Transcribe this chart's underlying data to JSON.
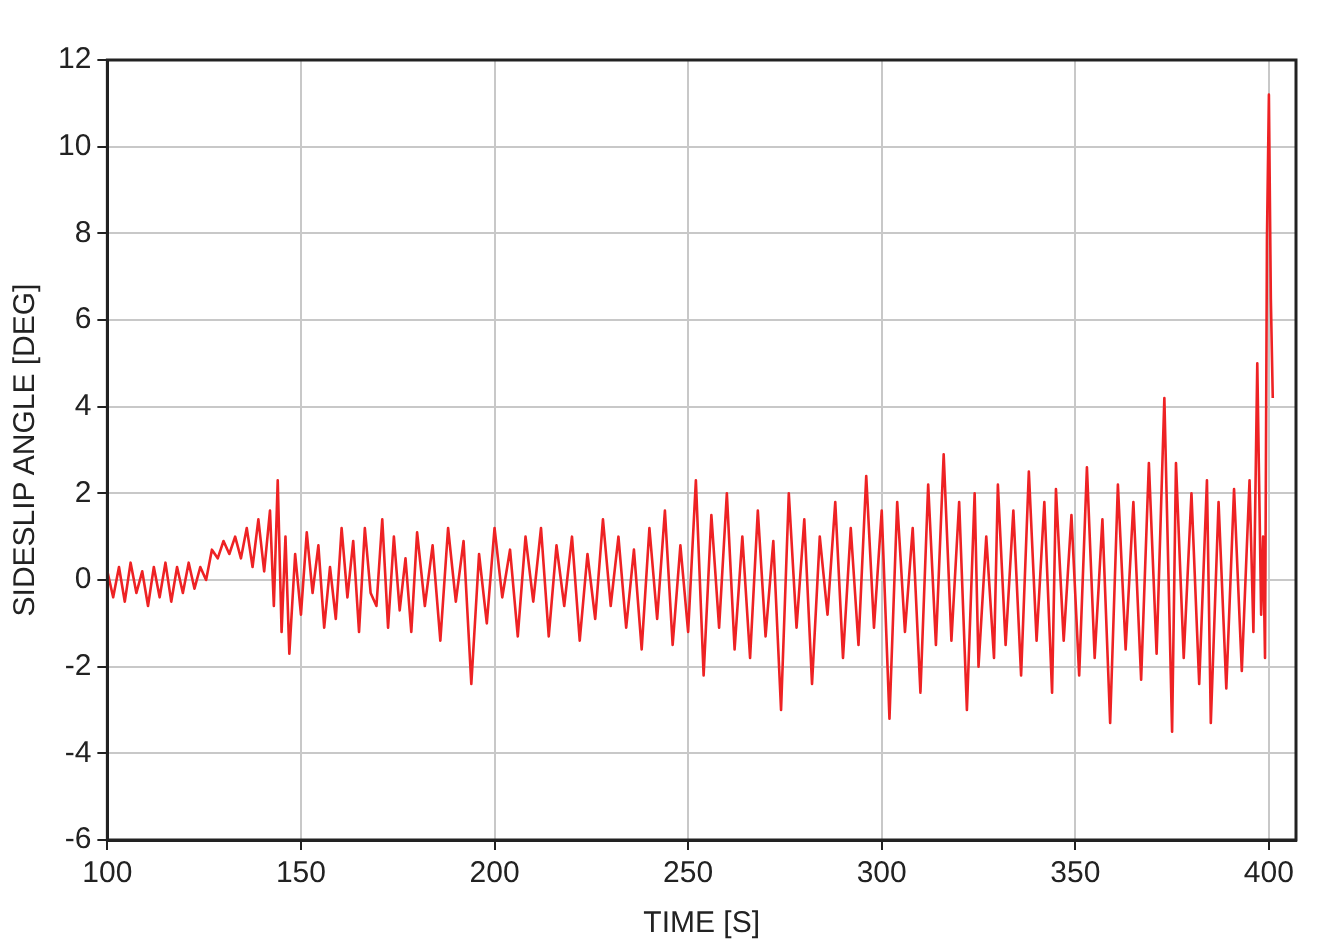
{
  "chart_data": {
    "type": "line",
    "xlabel": "TIME [S]",
    "ylabel": "SIDESLIP ANGLE [DEG]",
    "x": [
      100,
      101.5,
      103,
      104.5,
      106,
      107.5,
      109,
      110.5,
      112,
      113.5,
      115,
      116.5,
      118,
      119.5,
      121,
      122.5,
      124,
      125.5,
      127,
      128.5,
      130,
      131.5,
      133,
      134.5,
      136,
      137.5,
      139,
      140.5,
      142,
      143,
      144,
      145,
      146,
      147,
      148.5,
      150,
      151.5,
      153,
      154.5,
      156,
      157.5,
      159,
      160.5,
      162,
      163.5,
      165,
      166.5,
      168,
      169.5,
      171,
      172.5,
      174,
      175.5,
      177,
      178.5,
      180,
      182,
      184,
      186,
      188,
      190,
      192,
      194,
      196,
      198,
      200,
      202,
      204,
      206,
      208,
      210,
      212,
      214,
      216,
      218,
      220,
      222,
      224,
      226,
      228,
      230,
      232,
      234,
      236,
      238,
      240,
      242,
      244,
      246,
      248,
      250,
      252,
      254,
      256,
      258,
      260,
      262,
      264,
      266,
      268,
      270,
      272,
      274,
      276,
      278,
      280,
      282,
      284,
      286,
      288,
      290,
      292,
      294,
      296,
      298,
      300,
      302,
      304,
      306,
      308,
      310,
      312,
      314,
      316,
      318,
      320,
      322,
      324,
      325,
      327,
      329,
      330,
      332,
      334,
      336,
      338,
      340,
      342,
      344,
      345,
      347,
      349,
      351,
      353,
      355,
      357,
      359,
      361,
      363,
      365,
      367,
      369,
      371,
      373,
      375,
      376,
      378,
      380,
      382,
      384,
      385,
      387,
      389,
      391,
      393,
      395,
      396,
      397,
      398,
      398.5,
      399,
      399.5,
      400,
      400.5,
      401
    ],
    "series": [
      {
        "color": "#ee2224",
        "values": [
          0.2,
          -0.4,
          0.3,
          -0.5,
          0.4,
          -0.3,
          0.2,
          -0.6,
          0.3,
          -0.4,
          0.4,
          -0.5,
          0.3,
          -0.3,
          0.4,
          -0.2,
          0.3,
          0.0,
          0.7,
          0.5,
          0.9,
          0.6,
          1.0,
          0.5,
          1.2,
          0.3,
          1.4,
          0.2,
          1.6,
          -0.6,
          2.3,
          -1.2,
          1.0,
          -1.7,
          0.6,
          -0.8,
          1.1,
          -0.3,
          0.8,
          -1.1,
          0.3,
          -0.9,
          1.2,
          -0.4,
          0.9,
          -1.2,
          1.2,
          -0.3,
          -0.6,
          1.4,
          -1.1,
          1.0,
          -0.7,
          0.5,
          -1.2,
          1.1,
          -0.6,
          0.8,
          -1.4,
          1.2,
          -0.5,
          0.9,
          -2.4,
          0.6,
          -1.0,
          1.2,
          -0.4,
          0.7,
          -1.3,
          1.0,
          -0.5,
          1.2,
          -1.3,
          0.8,
          -0.6,
          1.0,
          -1.4,
          0.6,
          -0.9,
          1.4,
          -0.6,
          1.0,
          -1.1,
          0.7,
          -1.6,
          1.2,
          -0.9,
          1.6,
          -1.5,
          0.8,
          -1.2,
          2.3,
          -2.2,
          1.5,
          -1.1,
          2.0,
          -1.6,
          1.0,
          -1.8,
          1.6,
          -1.3,
          0.9,
          -3.0,
          2.0,
          -1.1,
          1.4,
          -2.4,
          1.0,
          -0.8,
          1.8,
          -1.8,
          1.2,
          -1.5,
          2.4,
          -1.1,
          1.6,
          -3.2,
          1.8,
          -1.2,
          1.2,
          -2.6,
          2.2,
          -1.5,
          2.9,
          -1.4,
          1.8,
          -3.0,
          2.0,
          -2.0,
          1.0,
          -1.8,
          2.2,
          -1.5,
          1.6,
          -2.2,
          2.5,
          -1.4,
          1.8,
          -2.6,
          2.1,
          -1.4,
          1.5,
          -2.2,
          2.6,
          -1.8,
          1.4,
          -3.3,
          2.2,
          -1.6,
          1.8,
          -2.3,
          2.7,
          -1.7,
          4.2,
          -3.5,
          2.7,
          -1.8,
          2.0,
          -2.4,
          2.3,
          -3.3,
          1.8,
          -2.5,
          2.1,
          -2.1,
          2.3,
          -1.2,
          5.0,
          -0.8,
          1.0,
          -1.8,
          7.9,
          11.2,
          6.5,
          4.2
        ]
      }
    ],
    "xlim": [
      100,
      407
    ],
    "xticks": [
      100,
      150,
      200,
      250,
      300,
      350,
      400
    ],
    "ylim": [
      -6,
      12
    ],
    "yticks": [
      -6,
      -4,
      -2,
      0,
      2,
      4,
      6,
      8,
      10,
      12
    ],
    "grid": true,
    "legend": false,
    "marker": "none",
    "line_style": "solid"
  }
}
